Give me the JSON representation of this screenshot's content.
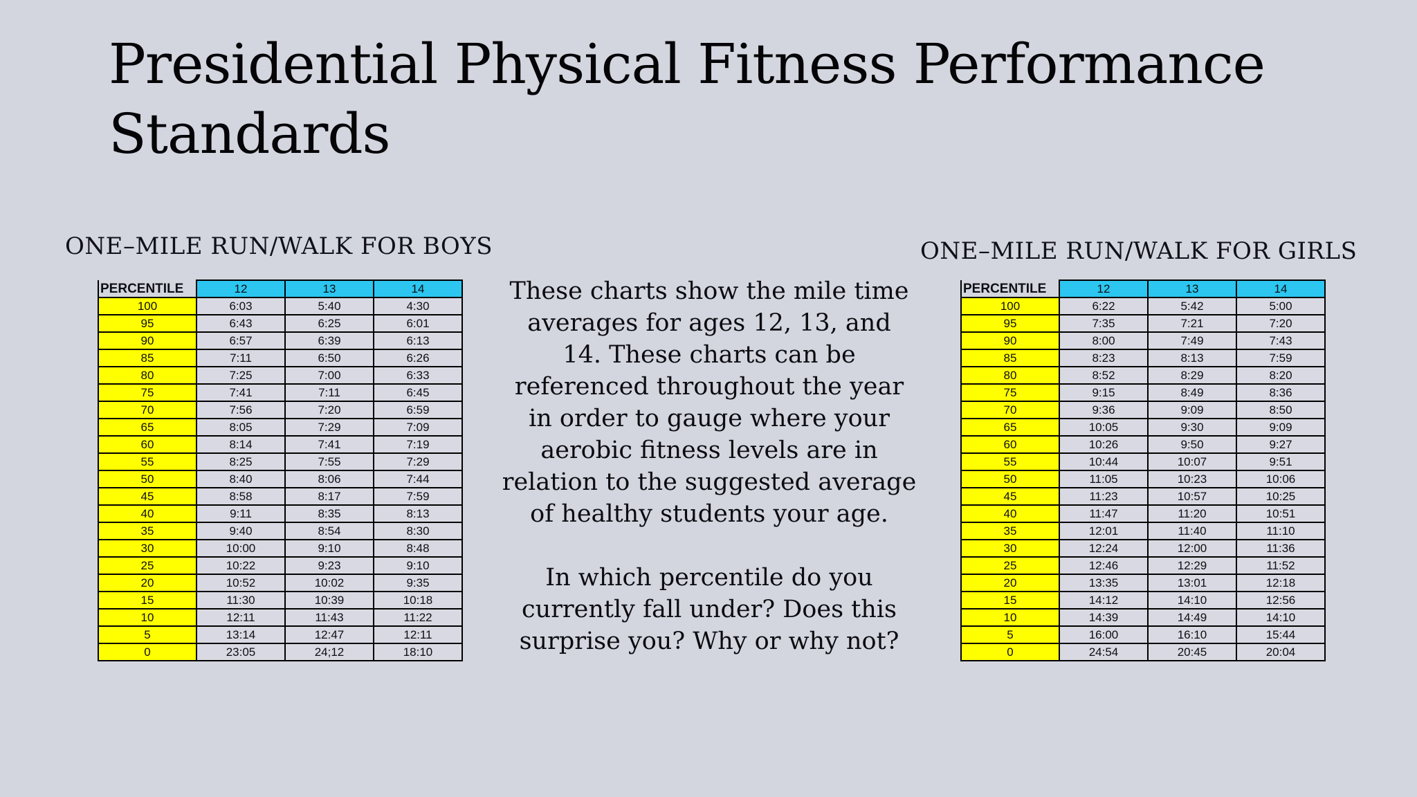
{
  "page": {
    "title_lines": [
      "Presidential Physical Fitness Performance",
      "Standards"
    ]
  },
  "colors": {
    "page_bg": "#d3d5df",
    "cell_bg": "#d8d9e2",
    "header_cyan": "#2cc6f0",
    "percentile_yellow": "#ffff00",
    "border": "#000000"
  },
  "boys_table": {
    "title": "ONE–MILE RUN/WALK FOR BOYS",
    "header": [
      "PERCENTILE",
      "12",
      "13",
      "14"
    ],
    "rows": [
      [
        "100",
        "6:03",
        "5:40",
        "4:30"
      ],
      [
        "95",
        "6:43",
        "6:25",
        "6:01"
      ],
      [
        "90",
        "6:57",
        "6:39",
        "6:13"
      ],
      [
        "85",
        "7:11",
        "6:50",
        "6:26"
      ],
      [
        "80",
        "7:25",
        "7:00",
        "6:33"
      ],
      [
        "75",
        "7:41",
        "7:11",
        "6:45"
      ],
      [
        "70",
        "7:56",
        "7:20",
        "6:59"
      ],
      [
        "65",
        "8:05",
        "7:29",
        "7:09"
      ],
      [
        "60",
        "8:14",
        "7:41",
        "7:19"
      ],
      [
        "55",
        "8:25",
        "7:55",
        "7:29"
      ],
      [
        "50",
        "8:40",
        "8:06",
        "7:44"
      ],
      [
        "45",
        "8:58",
        "8:17",
        "7:59"
      ],
      [
        "40",
        "9:11",
        "8:35",
        "8:13"
      ],
      [
        "35",
        "9:40",
        "8:54",
        "8:30"
      ],
      [
        "30",
        "10:00",
        "9:10",
        "8:48"
      ],
      [
        "25",
        "10:22",
        "9:23",
        "9:10"
      ],
      [
        "20",
        "10:52",
        "10:02",
        "9:35"
      ],
      [
        "15",
        "11:30",
        "10:39",
        "10:18"
      ],
      [
        "10",
        "12:11",
        "11:43",
        "11:22"
      ],
      [
        "5",
        "13:14",
        "12:47",
        "12:11"
      ],
      [
        "0",
        "23:05",
        "24;12",
        "18:10"
      ]
    ]
  },
  "girls_table": {
    "title": "ONE–MILE RUN/WALK FOR GIRLS",
    "header": [
      "PERCENTILE",
      "12",
      "13",
      "14"
    ],
    "rows": [
      [
        "100",
        "6:22",
        "5:42",
        "5:00"
      ],
      [
        "95",
        "7:35",
        "7:21",
        "7:20"
      ],
      [
        "90",
        "8:00",
        "7:49",
        "7:43"
      ],
      [
        "85",
        "8:23",
        "8:13",
        "7:59"
      ],
      [
        "80",
        "8:52",
        "8:29",
        "8:20"
      ],
      [
        "75",
        "9:15",
        "8:49",
        "8:36"
      ],
      [
        "70",
        "9:36",
        "9:09",
        "8:50"
      ],
      [
        "65",
        "10:05",
        "9:30",
        "9:09"
      ],
      [
        "60",
        "10:26",
        "9:50",
        "9:27"
      ],
      [
        "55",
        "10:44",
        "10:07",
        "9:51"
      ],
      [
        "50",
        "11:05",
        "10:23",
        "10:06"
      ],
      [
        "45",
        "11:23",
        "10:57",
        "10:25"
      ],
      [
        "40",
        "11:47",
        "11:20",
        "10:51"
      ],
      [
        "35",
        "12:01",
        "11:40",
        "11:10"
      ],
      [
        "30",
        "12:24",
        "12:00",
        "11:36"
      ],
      [
        "25",
        "12:46",
        "12:29",
        "11:52"
      ],
      [
        "20",
        "13:35",
        "13:01",
        "12:18"
      ],
      [
        "15",
        "14:12",
        "14:10",
        "12:56"
      ],
      [
        "10",
        "14:39",
        "14:49",
        "14:10"
      ],
      [
        "5",
        "16:00",
        "16:10",
        "15:44"
      ],
      [
        "0",
        "24:54",
        "20:45",
        "20:04"
      ]
    ]
  },
  "body_text": {
    "paragraph1_lines": [
      "These charts show the mile time",
      "averages for ages 12, 13, and",
      "14. These charts can be",
      "referenced throughout the year",
      "in order to gauge where your",
      "aerobic fitness levels are in",
      "relation to the suggested average",
      "of healthy students your age."
    ],
    "paragraph2_lines": [
      "In which percentile do you",
      "currently fall under? Does this",
      "surprise you? Why or why not?"
    ]
  }
}
